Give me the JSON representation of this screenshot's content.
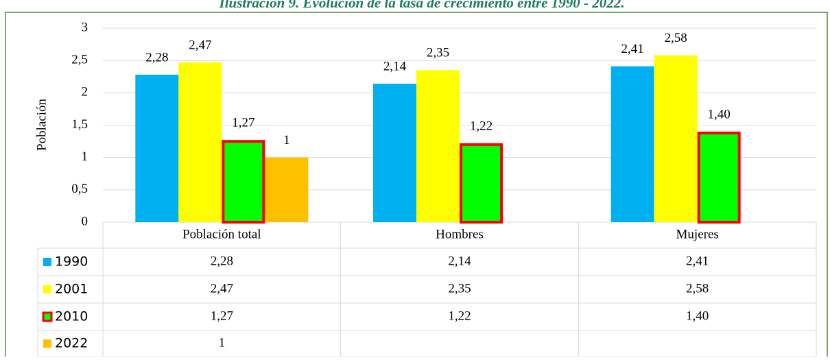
{
  "chart_data": {
    "type": "bar",
    "title": "Ilustración 9. Evolución de la tasa de crecimiento entre 1990 - 2022.",
    "y_label": "Población",
    "categories": [
      "Población total",
      "Hombres",
      "Mujeres"
    ],
    "series": [
      {
        "name": "1990",
        "color": "#00b0f0",
        "values": [
          2.28,
          2.14,
          2.41
        ],
        "value_labels": [
          "2,28",
          "2,14",
          "2,41"
        ]
      },
      {
        "name": "2001",
        "color": "#ffff00",
        "values": [
          2.47,
          2.35,
          2.58
        ],
        "value_labels": [
          "2,47",
          "2,35",
          "2,58"
        ]
      },
      {
        "name": "2010",
        "color": "#00ff00",
        "stroke": "#ff0000",
        "values": [
          1.27,
          1.22,
          1.4
        ],
        "value_labels": [
          "1,27",
          "1,22",
          "1,40"
        ]
      },
      {
        "name": "2022",
        "color": "#ffc000",
        "values": [
          1,
          null,
          null
        ]
      }
    ],
    "ylim": [
      0,
      3
    ],
    "yticks": [
      0,
      {
        "value": 0.5,
        "label": "0,5"
      },
      1,
      {
        "value": 1.5,
        "label": "1,5"
      },
      2,
      {
        "value": 2.5,
        "label": "2,5"
      },
      3
    ],
    "grid": true
  }
}
